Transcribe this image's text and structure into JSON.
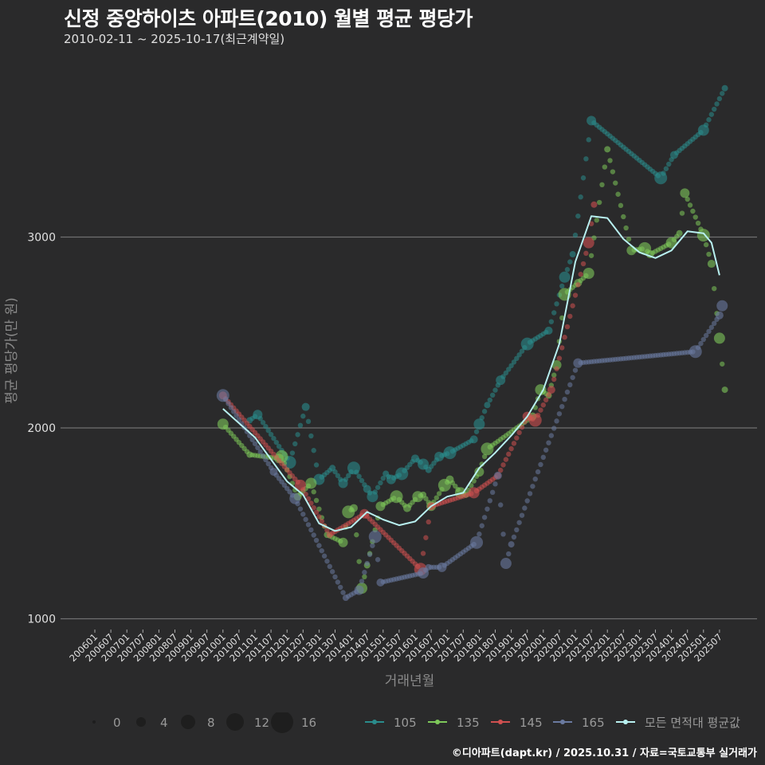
{
  "header": {
    "title": "신정 중앙하이츠 아파트(2010) 월별 평균 평당가",
    "subtitle": "2010-02-11 ~ 2025-10-17(최근계약일)"
  },
  "footer": {
    "credit": "©디아파트(dapt.kr) / 2025.10.31 / 자료=국토교통부 실거래가"
  },
  "colors": {
    "background": "#2a2a2b",
    "grid": "#707070",
    "s105": "#2a8c8c",
    "s135": "#7ec85a",
    "s145": "#d05050",
    "s165": "#6a7aa0",
    "avg": "#b8f0f0"
  },
  "legend": {
    "size_labels": [
      "0",
      "4",
      "8",
      "12",
      "16"
    ],
    "series_labels": [
      "105",
      "135",
      "145",
      "165",
      "모든 면적대 평균값"
    ]
  },
  "chart_data": {
    "type": "line",
    "title": "신정 중앙하이츠 아파트(2010) 월별 평균 평당가",
    "subtitle": "2010-02-11 ~ 2025-10-17(최근계약일)",
    "xlabel": "거래년월",
    "ylabel": "평균 평당가(만 원)",
    "ylim": [
      950,
      3850
    ],
    "yticks": [
      1000,
      2000,
      3000
    ],
    "grid": true,
    "legend_position": "bottom",
    "x_ticks": [
      "200601",
      "200607",
      "200701",
      "200707",
      "200801",
      "200807",
      "200901",
      "200907",
      "201001",
      "201007",
      "201101",
      "201107",
      "201201",
      "201207",
      "201301",
      "201307",
      "201401",
      "201407",
      "201501",
      "201507",
      "201601",
      "201607",
      "201701",
      "201707",
      "201801",
      "201807",
      "201901",
      "201907",
      "202001",
      "202007",
      "202101",
      "202107",
      "202201",
      "202207",
      "202301",
      "202307",
      "202401",
      "202407",
      "202501",
      "202507"
    ],
    "series": [
      {
        "name": "105",
        "points": [
          [
            "201011",
            2040
          ],
          [
            "201102",
            2070
          ],
          [
            "201202",
            1820
          ],
          [
            "201208",
            2110
          ],
          [
            "201301",
            1730
          ],
          [
            "201306",
            1790
          ],
          [
            "201310",
            1710
          ],
          [
            "201402",
            1790
          ],
          [
            "201407",
            1680
          ],
          [
            "201409",
            1640
          ],
          [
            "201502",
            1760
          ],
          [
            "201504",
            1730
          ],
          [
            "201508",
            1760
          ],
          [
            "201601",
            1840
          ],
          [
            "201604",
            1810
          ],
          [
            "201606",
            1780
          ],
          [
            "201610",
            1850
          ],
          [
            "201702",
            1870
          ],
          [
            "201711",
            1940
          ],
          [
            "201801",
            2020
          ],
          [
            "201804",
            2120
          ],
          [
            "201809",
            2250
          ],
          [
            "201907",
            2440
          ],
          [
            "202003",
            2510
          ],
          [
            "202009",
            2790
          ],
          [
            "202012",
            2910
          ],
          [
            "202107",
            3610
          ],
          [
            "202309",
            3310
          ],
          [
            "202402",
            3430
          ],
          [
            "202501",
            3560
          ],
          [
            "202509",
            3780
          ]
        ]
      },
      {
        "name": "135",
        "points": [
          [
            "201001",
            2020
          ],
          [
            "201011",
            1860
          ],
          [
            "201110",
            1840
          ],
          [
            "201111",
            1850
          ],
          [
            "201205",
            1640
          ],
          [
            "201210",
            1710
          ],
          [
            "201304",
            1440
          ],
          [
            "201310",
            1400
          ],
          [
            "201312",
            1560
          ],
          [
            "201402",
            1580
          ],
          [
            "201405",
            1160
          ],
          [
            "201407",
            1280
          ],
          [
            "201412",
            1590
          ],
          [
            "201506",
            1640
          ],
          [
            "201510",
            1580
          ],
          [
            "201602",
            1640
          ],
          [
            "201604",
            1650
          ],
          [
            "201607",
            1590
          ],
          [
            "201612",
            1700
          ],
          [
            "201702",
            1730
          ],
          [
            "201706",
            1660
          ],
          [
            "201708",
            1650
          ],
          [
            "201801",
            1770
          ],
          [
            "201804",
            1890
          ],
          [
            "201909",
            2060
          ],
          [
            "201912",
            2200
          ],
          [
            "202003",
            2170
          ],
          [
            "202006",
            2330
          ],
          [
            "202009",
            2700
          ],
          [
            "202102",
            2760
          ],
          [
            "202106",
            2810
          ],
          [
            "202201",
            3460
          ],
          [
            "202210",
            2930
          ],
          [
            "202303",
            2940
          ],
          [
            "202305",
            2910
          ],
          [
            "202401",
            2970
          ],
          [
            "202404",
            3020
          ],
          [
            "202406",
            3230
          ],
          [
            "202501",
            3010
          ],
          [
            "202504",
            2860
          ],
          [
            "202507",
            2470
          ],
          [
            "202509",
            2200
          ]
        ]
      },
      {
        "name": "145",
        "points": [
          [
            "201001",
            2170
          ],
          [
            "201206",
            1700
          ],
          [
            "201305",
            1440
          ],
          [
            "201406",
            1550
          ],
          [
            "201603",
            1260
          ],
          [
            "201607",
            1590
          ],
          [
            "201711",
            1660
          ],
          [
            "201808",
            1750
          ],
          [
            "201907",
            2060
          ],
          [
            "201910",
            2040
          ],
          [
            "202004",
            2200
          ],
          [
            "202106",
            2970
          ],
          [
            "202108",
            3170
          ]
        ]
      },
      {
        "name": "165",
        "points": [
          [
            "201001",
            2170
          ],
          [
            "201108",
            1770
          ],
          [
            "201204",
            1630
          ],
          [
            "201311",
            1110
          ],
          [
            "201404",
            1150
          ],
          [
            "201410",
            1430
          ],
          [
            "201412",
            1190
          ],
          [
            "201604",
            1240
          ],
          [
            "201606",
            1270
          ],
          [
            "201611",
            1270
          ],
          [
            "201712",
            1400
          ],
          [
            "201808",
            1750
          ],
          [
            "201811",
            1290
          ],
          [
            "201901",
            1390
          ],
          [
            "202102",
            2340
          ],
          [
            "202410",
            2400
          ],
          [
            "202507",
            2590
          ],
          [
            "202508",
            2640
          ]
        ]
      },
      {
        "name": "모든 면적대 평균값",
        "points": [
          [
            "201001",
            2100
          ],
          [
            "201101",
            1950
          ],
          [
            "201201",
            1720
          ],
          [
            "201207",
            1650
          ],
          [
            "201301",
            1500
          ],
          [
            "201307",
            1460
          ],
          [
            "201401",
            1480
          ],
          [
            "201407",
            1560
          ],
          [
            "201501",
            1520
          ],
          [
            "201507",
            1490
          ],
          [
            "201601",
            1510
          ],
          [
            "201607",
            1590
          ],
          [
            "201701",
            1640
          ],
          [
            "201707",
            1660
          ],
          [
            "201801",
            1790
          ],
          [
            "201807",
            1870
          ],
          [
            "201901",
            1960
          ],
          [
            "201907",
            2060
          ],
          [
            "202001",
            2200
          ],
          [
            "202007",
            2440
          ],
          [
            "202101",
            2870
          ],
          [
            "202107",
            3110
          ],
          [
            "202201",
            3100
          ],
          [
            "202207",
            2990
          ],
          [
            "202301",
            2920
          ],
          [
            "202307",
            2890
          ],
          [
            "202401",
            2930
          ],
          [
            "202407",
            3030
          ],
          [
            "202501",
            3020
          ],
          [
            "202504",
            2970
          ],
          [
            "202507",
            2800
          ]
        ]
      }
    ]
  }
}
